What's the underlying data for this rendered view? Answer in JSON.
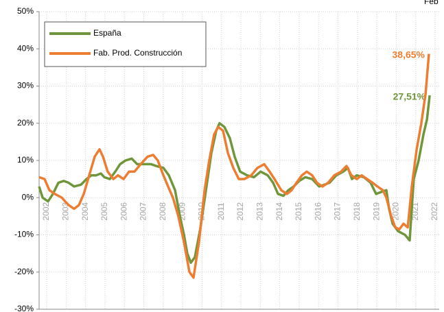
{
  "chart_data": {
    "type": "line",
    "annotation": "Feb",
    "xlim": [
      2001.61,
      2022.21
    ],
    "xticks": [
      2002,
      2003,
      2004,
      2005,
      2006,
      2007,
      2008,
      2009,
      2010,
      2011,
      2012,
      2013,
      2014,
      2015,
      2016,
      2017,
      2018,
      2019,
      2020,
      2021,
      2022
    ],
    "ylim": [
      -30,
      50
    ],
    "yticks": [
      {
        "value": -30,
        "label": "-30%"
      },
      {
        "value": -20,
        "label": "-20%"
      },
      {
        "value": -10,
        "label": "-10%"
      },
      {
        "value": 0,
        "label": "0%"
      },
      {
        "value": 10,
        "label": "10%"
      },
      {
        "value": 20,
        "label": "20%"
      },
      {
        "value": 30,
        "label": "30%"
      },
      {
        "value": 40,
        "label": "40%"
      },
      {
        "value": 50,
        "label": "50%"
      }
    ],
    "grid": true,
    "legend": "top-left",
    "series": [
      {
        "name": "España",
        "color": "#70963c",
        "end_label": "27,51%",
        "x": [
          2001.61,
          2001.79,
          2002.07,
          2002.32,
          2002.6,
          2002.88,
          2003.13,
          2003.41,
          2003.77,
          2004.05,
          2004.3,
          2004.54,
          2004.79,
          2004.97,
          2005.25,
          2005.53,
          2005.78,
          2006.06,
          2006.38,
          2006.66,
          2007.02,
          2007.37,
          2007.65,
          2008.01,
          2008.29,
          2008.61,
          2008.86,
          2009.07,
          2009.24,
          2009.42,
          2009.63,
          2009.92,
          2010.2,
          2010.48,
          2010.73,
          2010.9,
          2011.15,
          2011.43,
          2011.68,
          2011.96,
          2012.32,
          2012.67,
          2013.02,
          2013.38,
          2013.66,
          2013.91,
          2014.19,
          2014.44,
          2014.72,
          2015.0,
          2015.32,
          2015.67,
          2016.03,
          2016.31,
          2016.56,
          2016.91,
          2017.27,
          2017.51,
          2017.72,
          2017.97,
          2018.33,
          2018.68,
          2018.96,
          2019.21,
          2019.49,
          2019.63,
          2019.81,
          2020.09,
          2020.45,
          2020.69,
          2020.9,
          2021.15,
          2021.4,
          2021.58,
          2021.72
        ],
        "values": [
          3,
          0,
          -1,
          1,
          4,
          4.5,
          4,
          3,
          3.5,
          5,
          6,
          6,
          6.5,
          5.5,
          5,
          7,
          9,
          10,
          10.5,
          9,
          9,
          9,
          8.5,
          8,
          6,
          2,
          -5,
          -10,
          -15,
          -17.5,
          -16,
          -8,
          2,
          12,
          18,
          20,
          19,
          16,
          11,
          7,
          6,
          5.5,
          7,
          6,
          4,
          1,
          0.5,
          2,
          3,
          4.5,
          5.5,
          5,
          3,
          3.5,
          4,
          6,
          7,
          8,
          5,
          6,
          5.5,
          4,
          1,
          1.5,
          2,
          -3,
          -7,
          -9,
          -10,
          -11.5,
          5,
          10,
          17,
          21,
          27.51
        ]
      },
      {
        "name": "Fab. Prod. Construcción",
        "color": "#ed7d31",
        "end_label": "38,65%",
        "x": [
          2001.61,
          2001.89,
          2002.14,
          2002.42,
          2002.78,
          2002.95,
          2003.13,
          2003.41,
          2003.66,
          2003.91,
          2004.19,
          2004.47,
          2004.72,
          2004.9,
          2005.14,
          2005.43,
          2005.67,
          2005.96,
          2006.24,
          2006.52,
          2006.84,
          2007.19,
          2007.48,
          2007.72,
          2008.01,
          2008.25,
          2008.5,
          2008.78,
          2009.07,
          2009.35,
          2009.56,
          2009.84,
          2010.13,
          2010.37,
          2010.62,
          2010.83,
          2011.08,
          2011.33,
          2011.61,
          2011.89,
          2012.18,
          2012.53,
          2012.85,
          2013.2,
          2013.48,
          2013.73,
          2014.08,
          2014.37,
          2014.61,
          2014.86,
          2015.14,
          2015.39,
          2015.67,
          2015.92,
          2016.2,
          2016.49,
          2016.81,
          2017.16,
          2017.44,
          2017.69,
          2017.97,
          2018.22,
          2018.5,
          2018.78,
          2019.03,
          2019.31,
          2019.49,
          2019.74,
          2019.95,
          2020.16,
          2020.37,
          2020.59,
          2020.8,
          2021.05,
          2021.29,
          2021.51,
          2021.68
        ],
        "values": [
          5.5,
          5,
          2,
          1,
          0,
          -1,
          -2,
          -3,
          -2,
          1,
          6,
          11,
          13,
          11,
          7,
          5,
          6,
          5,
          7,
          7,
          9,
          11,
          11.5,
          10,
          6,
          3,
          0,
          -5,
          -12,
          -20,
          -21.5,
          -12,
          2,
          10,
          17,
          19,
          18,
          12,
          8,
          5,
          5,
          6,
          8,
          9,
          7,
          5,
          2,
          1,
          2,
          4,
          6,
          7,
          6,
          4,
          3,
          4,
          6,
          7,
          8.5,
          6,
          5,
          6,
          5,
          4,
          3,
          2,
          0,
          -5,
          -8,
          -8.5,
          -7,
          -8,
          3,
          13,
          20,
          28,
          38.65
        ]
      }
    ]
  }
}
